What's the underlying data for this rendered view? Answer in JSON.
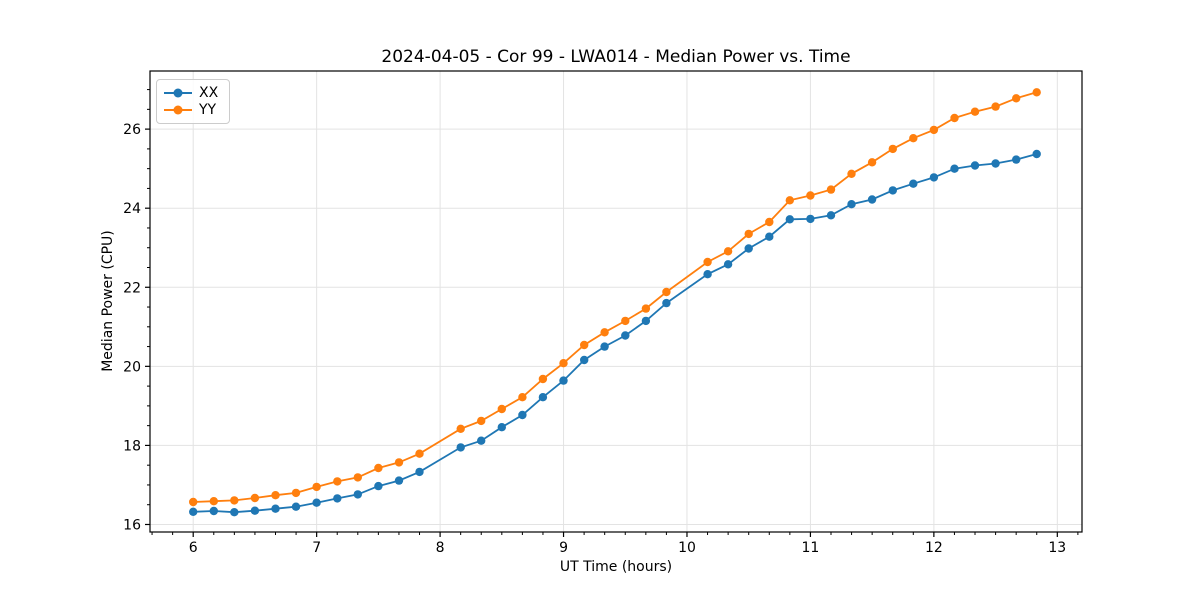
{
  "window": {
    "background": "#ffffff"
  },
  "chart_data": {
    "type": "line",
    "title": "2024-04-05 - Cor 99 - LWA014 - Median Power vs. Time",
    "xlabel": "UT Time (hours)",
    "ylabel": "Median Power (CPU)",
    "xlim": [
      5.65,
      13.2
    ],
    "ylim": [
      15.81,
      27.47
    ],
    "xticks": [
      6,
      7,
      8,
      9,
      10,
      11,
      12,
      13
    ],
    "yticks": [
      16,
      18,
      20,
      22,
      24,
      26
    ],
    "x_minor_step": 0.16667,
    "y_minor_step": 0.5,
    "grid": "major-both",
    "grid_color": "#e3e3e3",
    "axis_color": "#000000",
    "legend_position": "upper-left",
    "note_gaps": "no samples at 8.0 and 10.0",
    "x": [
      6.0,
      6.167,
      6.333,
      6.5,
      6.667,
      6.833,
      7.0,
      7.167,
      7.333,
      7.5,
      7.667,
      7.833,
      8.167,
      8.333,
      8.5,
      8.667,
      8.833,
      9.0,
      9.167,
      9.333,
      9.5,
      9.667,
      9.833,
      10.167,
      10.333,
      10.5,
      10.667,
      10.833,
      11.0,
      11.167,
      11.333,
      11.5,
      11.667,
      11.833,
      12.0,
      12.167,
      12.333,
      12.5,
      12.667,
      12.833
    ],
    "series": [
      {
        "name": "XX",
        "color": "#1f77b4",
        "values": [
          16.32,
          16.34,
          16.31,
          16.35,
          16.4,
          16.45,
          16.55,
          16.66,
          16.76,
          16.97,
          17.11,
          17.33,
          17.95,
          18.12,
          18.46,
          18.77,
          19.22,
          19.64,
          20.16,
          20.5,
          20.78,
          21.15,
          21.6,
          22.33,
          22.58,
          22.98,
          23.28,
          23.72,
          23.73,
          23.82,
          24.1,
          24.22,
          24.45,
          24.62,
          24.78,
          25.0,
          25.08,
          25.13,
          25.23,
          25.37
        ]
      },
      {
        "name": "YY",
        "color": "#ff7f0e",
        "values": [
          16.57,
          16.59,
          16.61,
          16.67,
          16.74,
          16.8,
          16.95,
          17.09,
          17.19,
          17.43,
          17.57,
          17.79,
          18.42,
          18.62,
          18.92,
          19.22,
          19.68,
          20.08,
          20.54,
          20.86,
          21.15,
          21.46,
          21.88,
          22.64,
          22.91,
          23.35,
          23.65,
          24.2,
          24.32,
          24.47,
          24.87,
          25.16,
          25.5,
          25.77,
          25.98,
          26.28,
          26.44,
          26.57,
          26.78,
          26.93
        ]
      }
    ]
  }
}
